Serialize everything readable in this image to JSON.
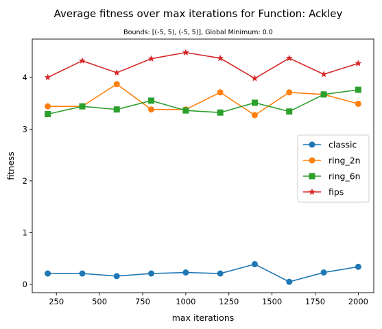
{
  "chart_data": {
    "type": "line",
    "title": "Average fitness over max iterations for Function: Ackley",
    "subtitle": "Bounds: [(-5, 5), (-5, 5)], Global Minimum: 0.0",
    "xlabel": "max iterations",
    "ylabel": "fitness",
    "x": [
      200,
      400,
      600,
      800,
      1000,
      1200,
      1400,
      1600,
      1800,
      2000
    ],
    "xlim": [
      110,
      2090
    ],
    "ylim": [
      -0.16,
      4.74
    ],
    "xticks": [
      250,
      500,
      750,
      1000,
      1250,
      1500,
      1750,
      2000
    ],
    "xtick_labels": [
      "250",
      "500",
      "750",
      "1000",
      "1250",
      "1500",
      "1750",
      "2000"
    ],
    "yticks": [
      0,
      1,
      2,
      3,
      4
    ],
    "ytick_labels": [
      "0",
      "1",
      "2",
      "3",
      "4"
    ],
    "grid": false,
    "legend_position": "center-right",
    "series": [
      {
        "name": "classic",
        "color": "#1f77b4",
        "marker": "circle",
        "values": [
          0.21,
          0.21,
          0.16,
          0.21,
          0.23,
          0.21,
          0.39,
          0.05,
          0.23,
          0.34
        ]
      },
      {
        "name": "ring_2n",
        "color": "#ff7f0e",
        "marker": "circle",
        "values": [
          3.44,
          3.44,
          3.87,
          3.38,
          3.38,
          3.71,
          3.27,
          3.71,
          3.67,
          3.49
        ]
      },
      {
        "name": "ring_6n",
        "color": "#2ca02c",
        "marker": "square",
        "values": [
          3.29,
          3.44,
          3.38,
          3.55,
          3.36,
          3.32,
          3.51,
          3.34,
          3.67,
          3.76
        ]
      },
      {
        "name": "fips",
        "color": "#d62728",
        "marker": "star",
        "values": [
          4.0,
          4.32,
          4.09,
          4.36,
          4.48,
          4.37,
          3.98,
          4.37,
          4.06,
          4.27
        ]
      }
    ]
  }
}
